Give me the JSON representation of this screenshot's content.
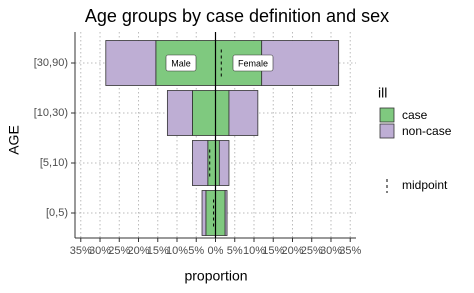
{
  "chart_data": {
    "type": "pyramid",
    "title": "Age groups by case definition and sex",
    "x_label": "proportion",
    "y_label": "AGE",
    "categories": [
      "[0,5)",
      "[5,10)",
      "[10,30)",
      "[30,90)"
    ],
    "series": [
      {
        "name": "case",
        "color": "#7fc97f",
        "male": [
          -2.5,
          -2,
          -6,
          -15.5
        ],
        "female": [
          2.5,
          1,
          3.5,
          12
        ]
      },
      {
        "name": "non-case",
        "color": "#beaed4",
        "male": [
          -1,
          -4,
          -6.5,
          -13
        ],
        "female": [
          0.5,
          2.5,
          7.5,
          20
        ]
      }
    ],
    "midpoint": {
      "name": "midpoint",
      "values": [
        -0.5,
        -1.5,
        0,
        1.5
      ]
    },
    "legend_title": "ill",
    "annotations": [
      "Male",
      "Female"
    ],
    "xlim": [
      -36.5,
      36.5
    ],
    "xticks": [
      {
        "value": -35,
        "label": "35%"
      },
      {
        "value": -30,
        "label": "30%"
      },
      {
        "value": -25,
        "label": "25%"
      },
      {
        "value": -20,
        "label": "20%"
      },
      {
        "value": -15,
        "label": "15%"
      },
      {
        "value": -10,
        "label": "10%"
      },
      {
        "value": -5,
        "label": "5%"
      },
      {
        "value": 0,
        "label": "0%"
      },
      {
        "value": 5,
        "label": "5%"
      },
      {
        "value": 10,
        "label": "10%"
      },
      {
        "value": 15,
        "label": "15%"
      },
      {
        "value": 20,
        "label": "20%"
      },
      {
        "value": 25,
        "label": "25%"
      },
      {
        "value": 30,
        "label": "30%"
      },
      {
        "value": 35,
        "label": "35%"
      }
    ],
    "grid": true
  }
}
